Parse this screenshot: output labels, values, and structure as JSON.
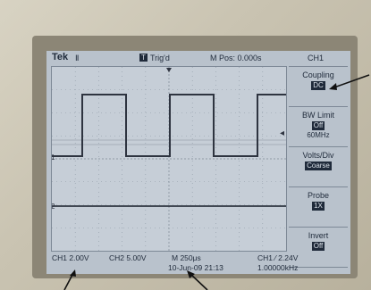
{
  "topbar": {
    "brand": "Tek",
    "trigger_icon": "Ⅱ",
    "t_marker": "T",
    "trigger_status": "Trig'd",
    "main_position": "M Pos: 0.000s",
    "menu_title": "CH1"
  },
  "menu": {
    "coupling": {
      "label": "Coupling",
      "value": "DC"
    },
    "bw_limit": {
      "label": "BW Limit",
      "value": "Off",
      "sub": "60MHz"
    },
    "volts_div": {
      "label": "Volts/Div",
      "value": "Coarse"
    },
    "probe": {
      "label": "Probe",
      "value": "1X"
    },
    "invert": {
      "label": "Invert",
      "value": "Off"
    }
  },
  "bottom": {
    "ch1_scale": "CH1 2.00V",
    "ch2_scale": "CH2 5.00V",
    "timebase": "M 250μs",
    "date_time": "10-Jun-09 21:13",
    "trigger_level": "CH1 ⁄ 2.24V",
    "frequency": "1.00000kHz"
  },
  "markers": {
    "ch1": "1",
    "ch2": "2"
  },
  "colors": {
    "screen": "#b9c2cc",
    "trace": "#2e3440",
    "text": "#1f2a3a",
    "arrow": "#111111"
  }
}
